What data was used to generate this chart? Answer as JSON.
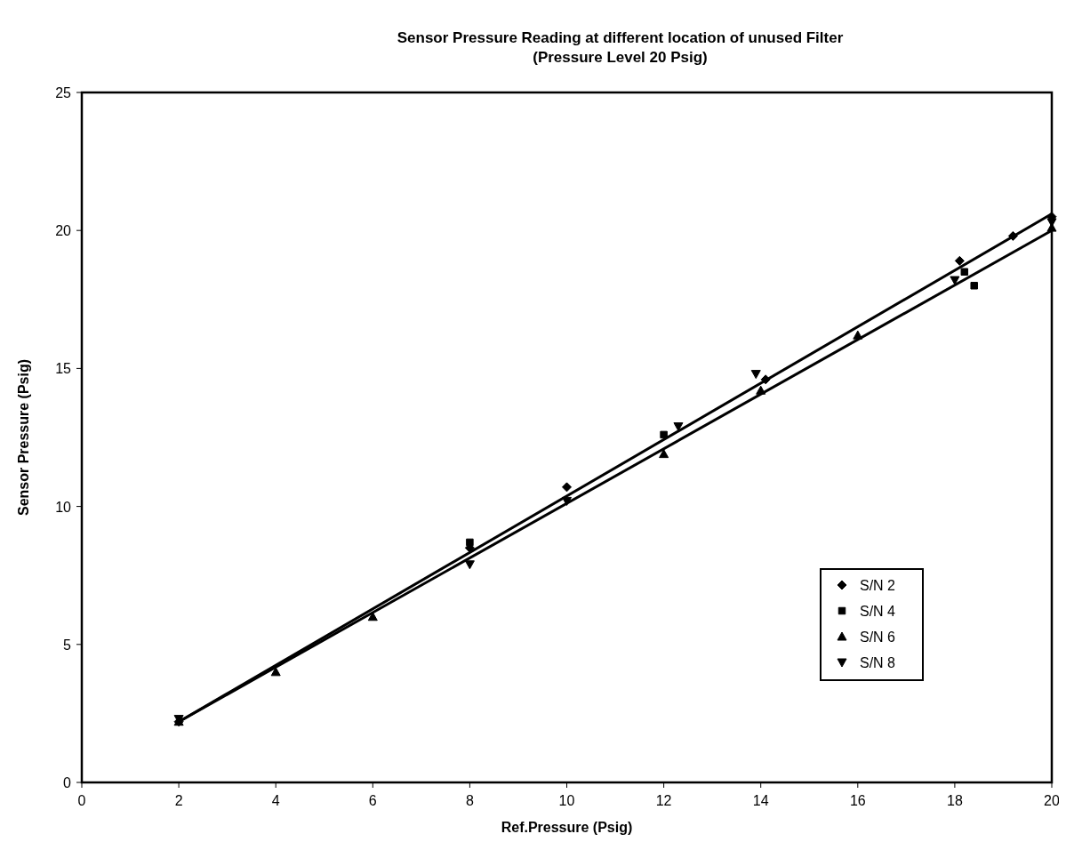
{
  "chart_data": {
    "type": "scatter",
    "title": "Sensor Pressure Reading at different location of unused Filter",
    "subtitle": "(Pressure Level 20 Psig)",
    "xlabel": "Ref.Pressure (Psig)",
    "ylabel": "Sensor Pressure (Psig)",
    "xlim": [
      0,
      20
    ],
    "xticks": [
      0,
      2,
      4,
      6,
      8,
      10,
      12,
      14,
      16,
      18,
      20
    ],
    "ylim": [
      0,
      25
    ],
    "yticks": [
      0,
      5,
      10,
      15,
      20,
      25
    ],
    "grid": false,
    "legend": "bottom right",
    "series": [
      {
        "name": "S/N 2",
        "color": "#000000",
        "marker": "diamond",
        "x": [
          2,
          8,
          10,
          14.1,
          18.1,
          19.2,
          20
        ],
        "values": [
          2.2,
          8.5,
          10.7,
          14.6,
          18.9,
          19.8,
          20.5
        ]
      },
      {
        "name": "S/N 4",
        "color": "#000000",
        "marker": "square",
        "x": [
          8,
          12,
          18.2,
          18.4
        ],
        "values": [
          8.7,
          12.6,
          18.5,
          18.0
        ]
      },
      {
        "name": "S/N 6",
        "color": "#000000",
        "marker": "triangle",
        "x": [
          2,
          4,
          6,
          12,
          14,
          16,
          20
        ],
        "values": [
          2.2,
          4.0,
          6.0,
          11.9,
          14.2,
          16.2,
          20.1
        ]
      },
      {
        "name": "S/N 8",
        "color": "#000000",
        "marker": "triangle-down",
        "x": [
          2,
          8,
          10,
          12.3,
          13.9,
          18,
          20
        ],
        "values": [
          2.3,
          7.9,
          10.2,
          12.9,
          14.8,
          18.2,
          20.3
        ]
      },
      {
        "type": "line",
        "color": "#000000",
        "marker": "none",
        "x": [
          2,
          20
        ],
        "values": [
          2.2,
          20.6
        ]
      },
      {
        "type": "line",
        "color": "#000000",
        "marker": "none",
        "x": [
          2,
          20
        ],
        "values": [
          2.2,
          20.0
        ]
      }
    ]
  }
}
